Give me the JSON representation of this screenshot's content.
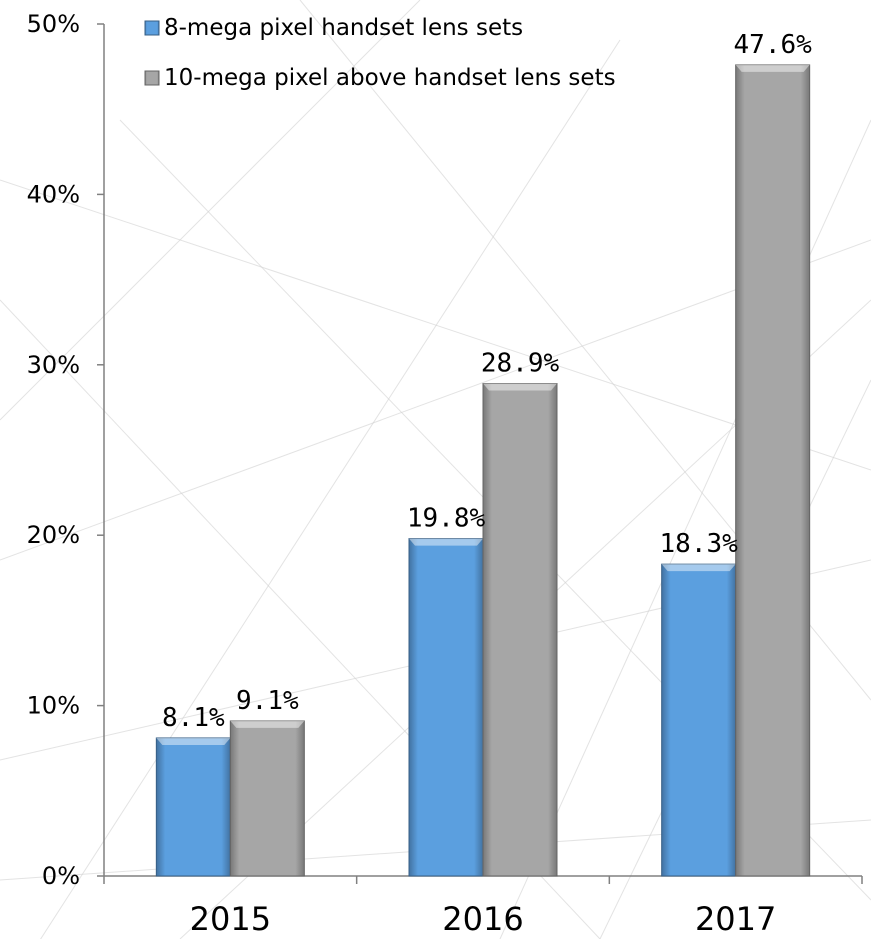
{
  "chart_data": {
    "type": "bar",
    "categories": [
      "2015",
      "2016",
      "2017"
    ],
    "series": [
      {
        "name": "8-mega pixel handset lens sets",
        "values": [
          8.1,
          19.8,
          18.3
        ],
        "color": "#5b9fdf"
      },
      {
        "name": "10-mega pixel above handset lens sets",
        "values": [
          9.1,
          28.9,
          47.6
        ],
        "color": "#a6a6a6"
      }
    ],
    "data_labels": [
      [
        "8.1%",
        "19.8%",
        "18.3%"
      ],
      [
        "9.1%",
        "28.9%",
        "47.6%"
      ]
    ],
    "ylim": [
      0,
      50
    ],
    "yticks": [
      0,
      10,
      20,
      30,
      40,
      50
    ],
    "ytick_labels": [
      "0%",
      "10%",
      "20%",
      "30%",
      "40%",
      "50%"
    ],
    "legend_position": "top-left",
    "grid": false,
    "title": "",
    "xlabel": "",
    "ylabel": ""
  }
}
